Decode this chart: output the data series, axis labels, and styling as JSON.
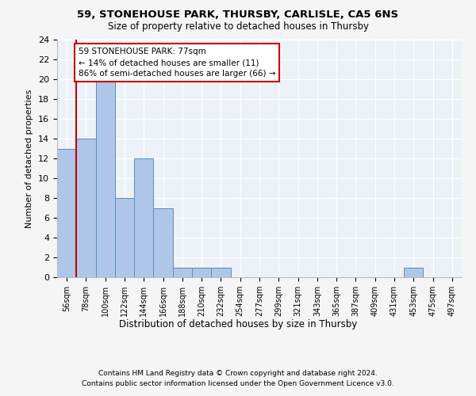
{
  "title1": "59, STONEHOUSE PARK, THURSBY, CARLISLE, CA5 6NS",
  "title2": "Size of property relative to detached houses in Thursby",
  "xlabel": "Distribution of detached houses by size in Thursby",
  "ylabel": "Number of detached properties",
  "bin_labels": [
    "56sqm",
    "78sqm",
    "100sqm",
    "122sqm",
    "144sqm",
    "166sqm",
    "188sqm",
    "210sqm",
    "232sqm",
    "254sqm",
    "277sqm",
    "299sqm",
    "321sqm",
    "343sqm",
    "365sqm",
    "387sqm",
    "409sqm",
    "431sqm",
    "453sqm",
    "475sqm",
    "497sqm"
  ],
  "bar_values": [
    13,
    14,
    20,
    8,
    12,
    7,
    1,
    1,
    1,
    0,
    0,
    0,
    0,
    0,
    0,
    0,
    0,
    0,
    1,
    0,
    0
  ],
  "bar_color": "#aec6e8",
  "bar_edge_color": "#5b8db8",
  "annotation_lines": [
    "59 STONEHOUSE PARK: 77sqm",
    "← 14% of detached houses are smaller (11)",
    "86% of semi-detached houses are larger (66) →"
  ],
  "annotation_box_color": "#cc0000",
  "ylim": [
    0,
    24
  ],
  "yticks": [
    0,
    2,
    4,
    6,
    8,
    10,
    12,
    14,
    16,
    18,
    20,
    22,
    24
  ],
  "footer1": "Contains HM Land Registry data © Crown copyright and database right 2024.",
  "footer2": "Contains public sector information licensed under the Open Government Licence v3.0.",
  "bg_color": "#edf2f9",
  "grid_color": "#ffffff",
  "fig_bg_color": "#f5f5f5"
}
